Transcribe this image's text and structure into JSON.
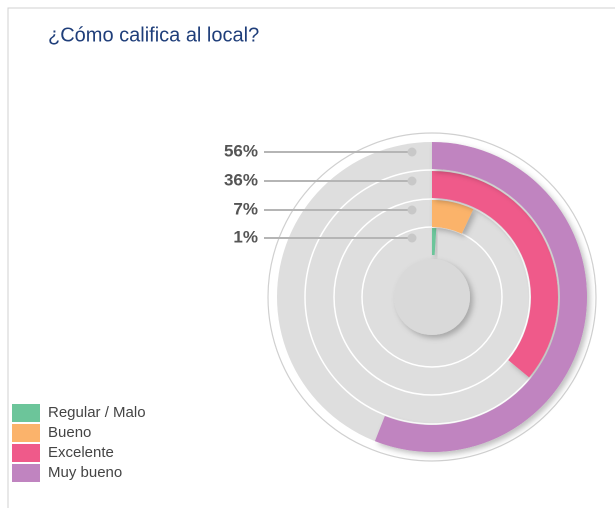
{
  "chart_data": {
    "type": "radial-bar",
    "title": "¿Cómo califica al local?",
    "categories": [
      "Regular / Malo",
      "Bueno",
      "Excelente",
      "Muy bueno"
    ],
    "values": [
      1,
      7,
      36,
      56
    ],
    "value_labels": [
      "1%",
      "7%",
      "36%",
      "56%"
    ],
    "colors": [
      "#6cc59a",
      "#fbb36b",
      "#ef5a8a",
      "#c084c0"
    ],
    "ylim": [
      0,
      100
    ]
  }
}
